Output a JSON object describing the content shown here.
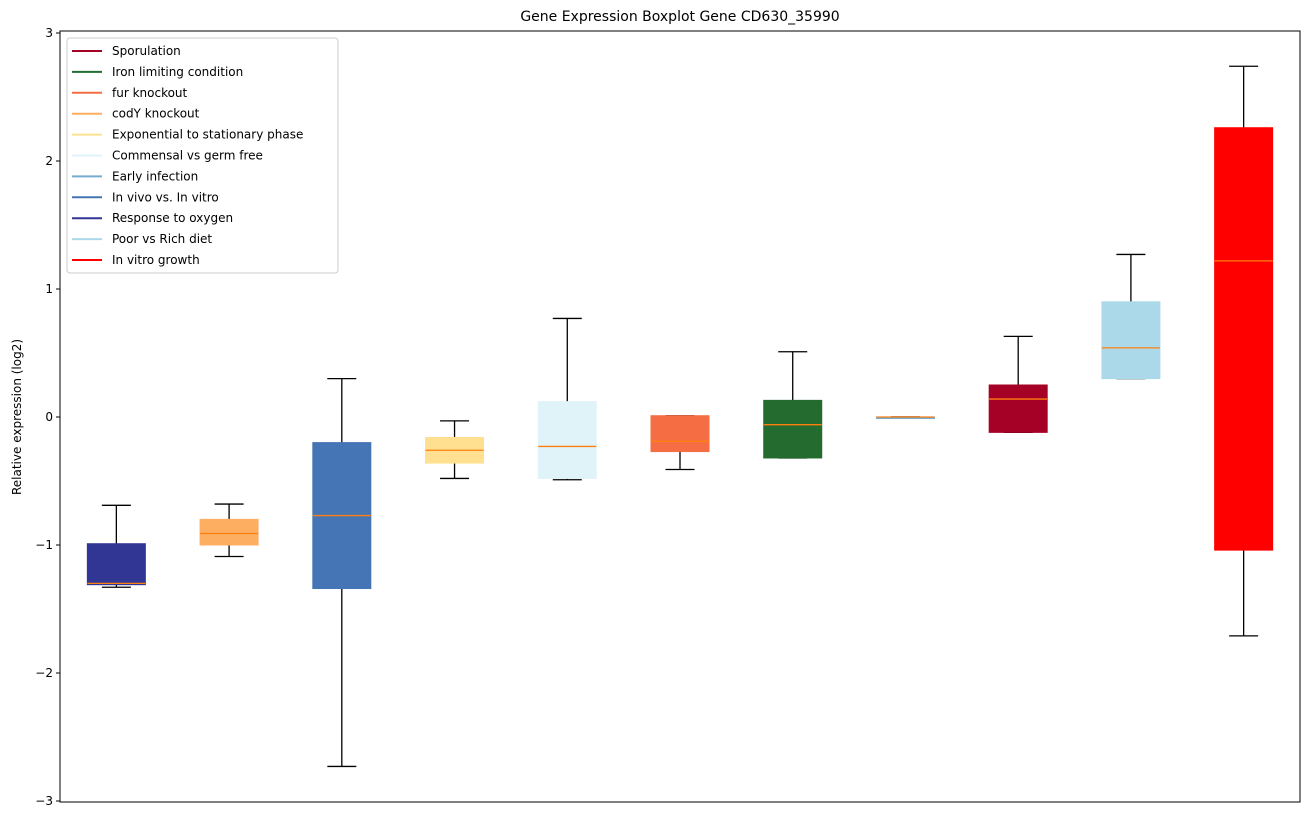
{
  "chart_data": {
    "type": "boxplot",
    "title": "Gene Expression Boxplot Gene CD630_35990",
    "xlabel": "",
    "ylabel": "Relative expression (log2)",
    "ylim": [
      -3.0,
      3.02
    ],
    "yticks": [
      -3,
      -2,
      -1,
      0,
      1,
      2,
      3
    ],
    "ytick_labels": [
      "−3",
      "−2",
      "−1",
      "0",
      "1",
      "2",
      "3"
    ],
    "grid": false,
    "legend_position": "top-left",
    "median_color": "#ff7f0e",
    "legend": [
      {
        "label": "Sporulation",
        "color": "#a50026"
      },
      {
        "label": "Iron limiting condition",
        "color": "#236b2e"
      },
      {
        "label": "fur knockout",
        "color": "#f46d43"
      },
      {
        "label": "codY knockout",
        "color": "#fdae61"
      },
      {
        "label": "Exponential to stationary phase",
        "color": "#fee090"
      },
      {
        "label": "Commensal vs germ free",
        "color": "#e0f3f8"
      },
      {
        "label": "Early infection",
        "color": "#74add1"
      },
      {
        "label": "In vivo vs. In vitro",
        "color": "#4575b4"
      },
      {
        "label": "Response to oxygen",
        "color": "#313695"
      },
      {
        "label": "Poor vs Rich diet",
        "color": "#abd9e9"
      },
      {
        "label": "In vitro growth",
        "color": "#ff0000"
      }
    ],
    "boxes": [
      {
        "name": "Response to oxygen",
        "color": "#313695",
        "whislo": -1.33,
        "q1": -1.31,
        "median": -1.3,
        "q3": -0.99,
        "whishi": -0.69
      },
      {
        "name": "codY knockout",
        "color": "#fdae61",
        "whislo": -1.09,
        "q1": -1.0,
        "median": -0.91,
        "q3": -0.8,
        "whishi": -0.68
      },
      {
        "name": "In vivo vs. In vitro",
        "color": "#4575b4",
        "whislo": -2.73,
        "q1": -1.34,
        "median": -0.77,
        "q3": -0.2,
        "whishi": 0.3
      },
      {
        "name": "Exponential to stationary phase",
        "color": "#fee090",
        "whislo": -0.48,
        "q1": -0.36,
        "median": -0.26,
        "q3": -0.16,
        "whishi": -0.03
      },
      {
        "name": "Commensal vs germ free",
        "color": "#e0f3f8",
        "whislo": -0.49,
        "q1": -0.48,
        "median": -0.23,
        "q3": 0.12,
        "whishi": 0.77
      },
      {
        "name": "fur knockout",
        "color": "#f46d43",
        "whislo": -0.41,
        "q1": -0.27,
        "median": -0.19,
        "q3": 0.01,
        "whishi": 0.01
      },
      {
        "name": "Iron limiting condition",
        "color": "#236b2e",
        "whislo": -0.32,
        "q1": -0.32,
        "median": -0.06,
        "q3": 0.13,
        "whishi": 0.51
      },
      {
        "name": "Early infection",
        "color": "#74add1",
        "whislo": 0.0,
        "q1": 0.0,
        "median": 0.0,
        "q3": 0.0,
        "whishi": 0.0
      },
      {
        "name": "Sporulation",
        "color": "#a50026",
        "whislo": -0.12,
        "q1": -0.12,
        "median": 0.14,
        "q3": 0.25,
        "whishi": 0.63
      },
      {
        "name": "Poor vs Rich diet",
        "color": "#abd9e9",
        "whislo": 0.3,
        "q1": 0.3,
        "median": 0.54,
        "q3": 0.9,
        "whishi": 1.27
      },
      {
        "name": "In vitro growth",
        "color": "#ff0000",
        "whislo": -1.71,
        "q1": -1.04,
        "median": 1.22,
        "q3": 2.26,
        "whishi": 2.74
      }
    ]
  }
}
